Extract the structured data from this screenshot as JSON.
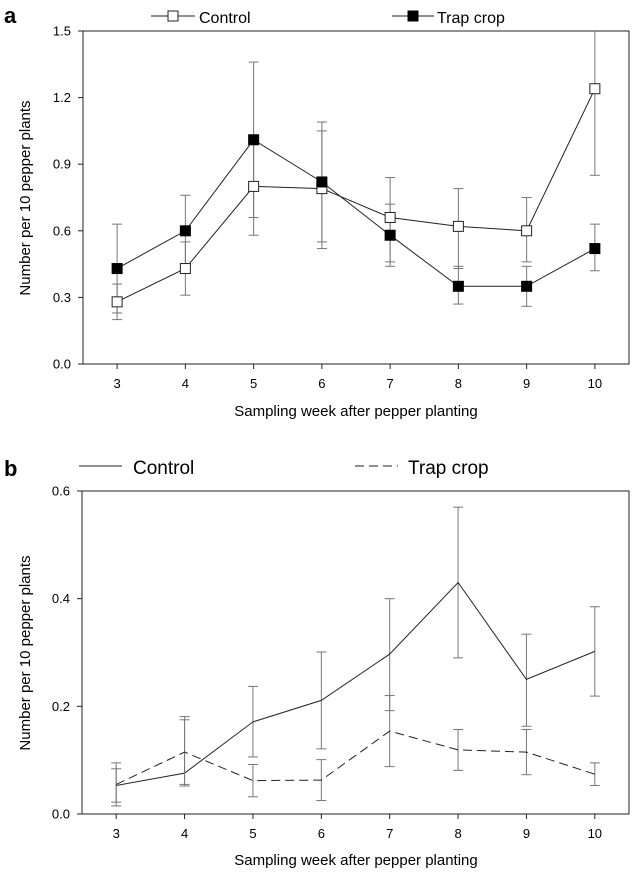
{
  "chart_data": [
    {
      "panel": "a",
      "type": "line",
      "xlabel": "Sampling week after pepper planting",
      "ylabel": "Number per 10 pepper plants",
      "x": [
        3,
        4,
        5,
        6,
        7,
        8,
        9,
        10
      ],
      "xlim": [
        2.5,
        10.5
      ],
      "ylim": [
        0,
        1.5
      ],
      "x_ticks": [
        "3",
        "4",
        "5",
        "6",
        "7",
        "8",
        "9",
        "10"
      ],
      "y_ticks": [
        "0.0",
        "0.3",
        "0.6",
        "0.9",
        "1.2",
        "1.5"
      ],
      "y_tick_values": [
        0,
        0.3,
        0.6,
        0.9,
        1.2,
        1.5
      ],
      "grid": false,
      "legend_position": "top",
      "series": [
        {
          "name": "Control",
          "marker": "open-square",
          "line": "solid",
          "values": [
            0.28,
            0.43,
            0.8,
            0.79,
            0.66,
            0.62,
            0.6,
            1.24
          ],
          "err_low": [
            0.2,
            0.31,
            0.58,
            0.52,
            0.46,
            0.43,
            0.46,
            0.85
          ],
          "err_high": [
            0.36,
            0.55,
            1.02,
            1.05,
            0.84,
            0.79,
            0.75,
            1.62
          ]
        },
        {
          "name": "Trap crop",
          "marker": "filled-square",
          "line": "solid",
          "values": [
            0.43,
            0.6,
            1.01,
            0.82,
            0.58,
            0.35,
            0.35,
            0.52
          ],
          "err_low": [
            0.23,
            0.43,
            0.66,
            0.55,
            0.44,
            0.27,
            0.26,
            0.42
          ],
          "err_high": [
            0.63,
            0.76,
            1.36,
            1.09,
            0.72,
            0.44,
            0.44,
            0.63
          ]
        }
      ]
    },
    {
      "panel": "b",
      "type": "line",
      "xlabel": "Sampling week after pepper planting",
      "ylabel": "Number per 10 pepper plants",
      "x": [
        3,
        4,
        5,
        6,
        7,
        8,
        9,
        10
      ],
      "xlim": [
        2.5,
        10.5
      ],
      "ylim": [
        0,
        0.6
      ],
      "x_ticks": [
        "3",
        "4",
        "5",
        "6",
        "7",
        "8",
        "9",
        "10"
      ],
      "y_ticks": [
        "0.0",
        "0.2",
        "0.4",
        "0.6"
      ],
      "y_tick_values": [
        0,
        0.2,
        0.4,
        0.6
      ],
      "grid": false,
      "legend_position": "top",
      "series": [
        {
          "name": "Control",
          "marker": "none",
          "line": "solid",
          "values": [
            0.053,
            0.076,
            0.171,
            0.211,
            0.297,
            0.43,
            0.25,
            0.302
          ],
          "err_low": [
            0.022,
            0.052,
            0.106,
            0.121,
            0.192,
            0.29,
            0.163,
            0.219
          ],
          "err_high": [
            0.084,
            0.181,
            0.237,
            0.301,
            0.4,
            0.57,
            0.334,
            0.385
          ]
        },
        {
          "name": "Trap crop",
          "marker": "none",
          "line": "dashed",
          "values": [
            0.055,
            0.115,
            0.062,
            0.063,
            0.154,
            0.119,
            0.115,
            0.074
          ],
          "err_low": [
            0.015,
            0.055,
            0.032,
            0.025,
            0.088,
            0.081,
            0.073,
            0.053
          ],
          "err_high": [
            0.095,
            0.175,
            0.092,
            0.101,
            0.22,
            0.157,
            0.157,
            0.095
          ]
        }
      ]
    }
  ]
}
